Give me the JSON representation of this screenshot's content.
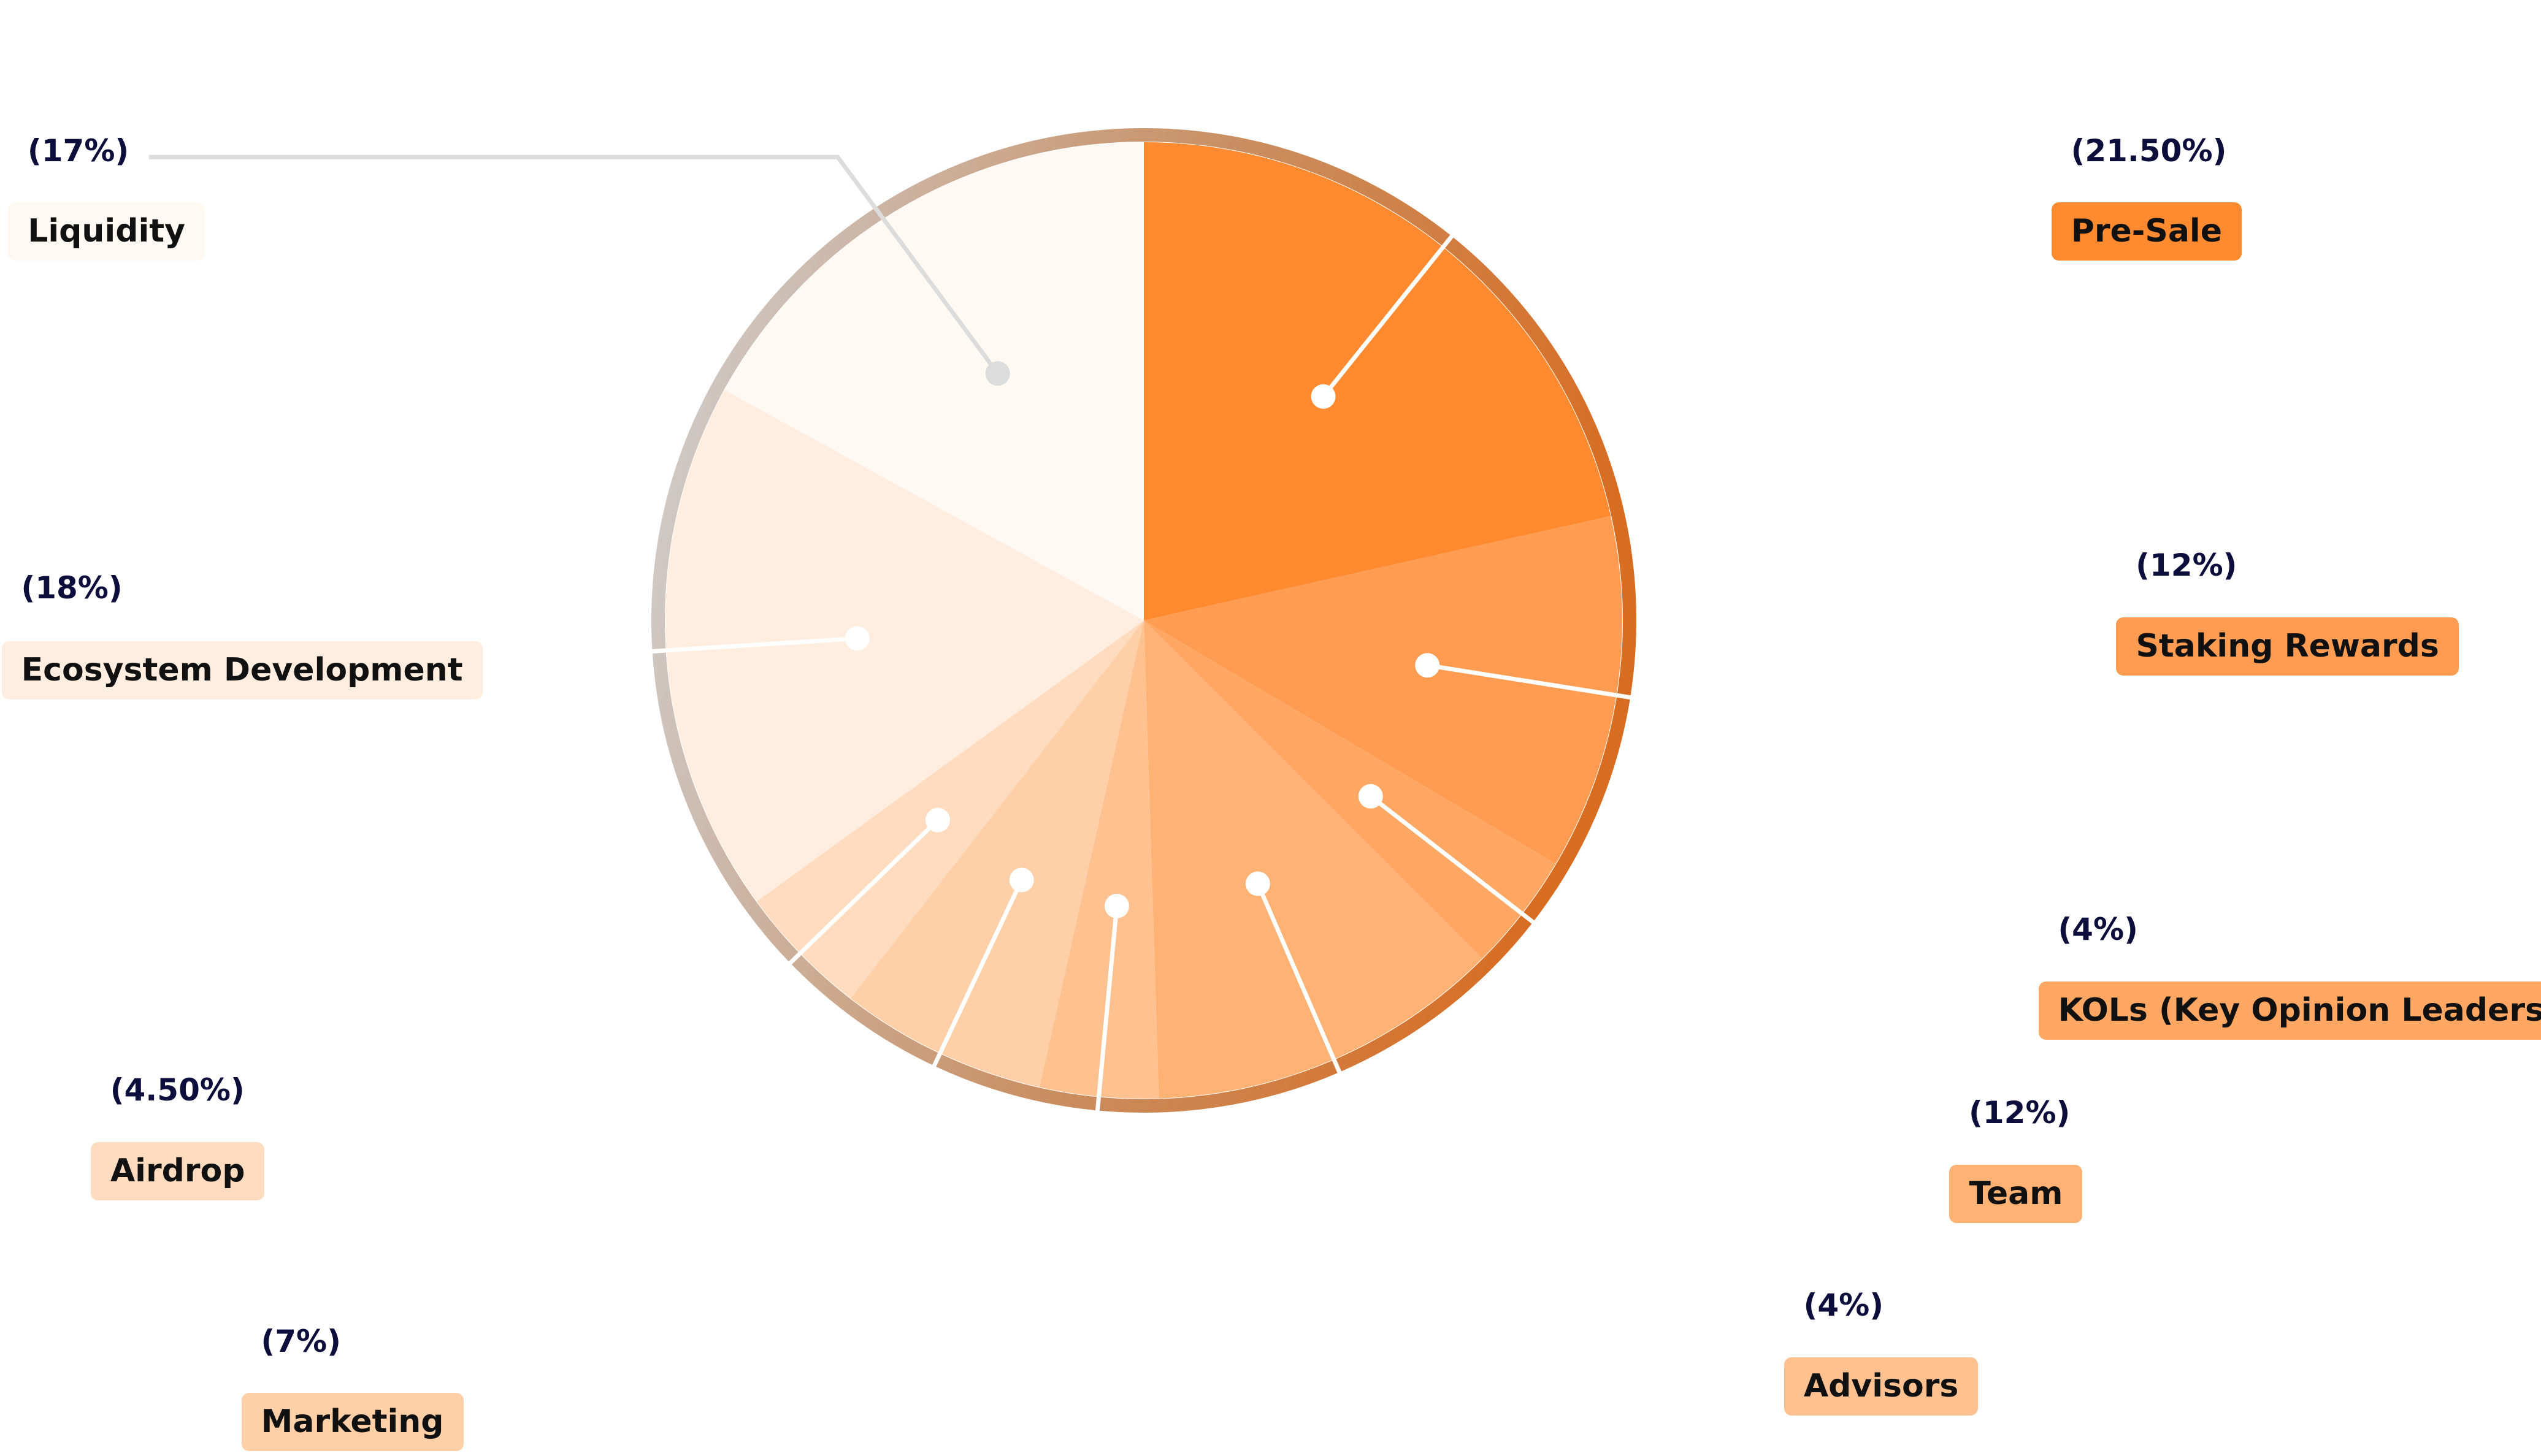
{
  "chart_data": {
    "type": "pie",
    "categories": [
      "Pre-Sale",
      "Staking Rewards",
      "KOLs (Key Opinion Leaders)",
      "Team",
      "Advisors",
      "Marketing",
      "Airdrop",
      "Ecosystem Development",
      "Liquidity"
    ],
    "values": [
      21.5,
      12,
      4,
      12,
      4,
      7,
      4.5,
      18,
      17
    ],
    "value_labels": [
      "(21.50%)",
      "(12%)",
      "(4%)",
      "(12%)",
      "(4%)",
      "(7%)",
      "(4.50%)",
      "(18%)",
      "(17%)"
    ],
    "colors": [
      "#ff8a2f",
      "#ff9c52",
      "#ffa763",
      "#ffb274",
      "#ffc18f",
      "#ffcfa8",
      "#ffdcc0",
      "#ffede0",
      "#fff8f3"
    ]
  }
}
